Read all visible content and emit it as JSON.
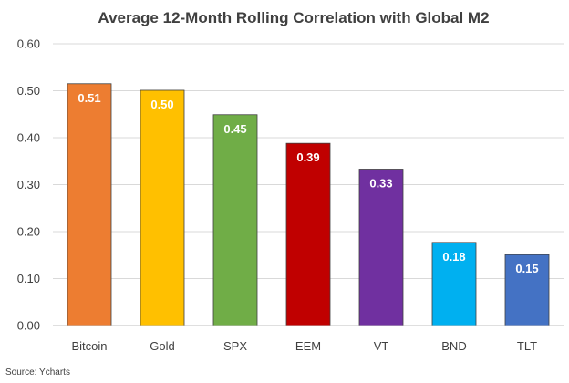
{
  "chart_data": {
    "type": "bar",
    "title": "Average 12-Month Rolling Correlation with Global M2",
    "categories": [
      "Bitcoin",
      "Gold",
      "SPX",
      "EEM",
      "VT",
      "BND",
      "TLT"
    ],
    "values": [
      0.515,
      0.501,
      0.449,
      0.388,
      0.333,
      0.177,
      0.151
    ],
    "data_labels": [
      "0.51",
      "0.50",
      "0.45",
      "0.39",
      "0.33",
      "0.18",
      "0.15"
    ],
    "colors": [
      "#ED7D31",
      "#FFC000",
      "#70AD47",
      "#C00000",
      "#7030A0",
      "#00B0F0",
      "#4472C4"
    ],
    "ylim": [
      0,
      0.6
    ],
    "yticks": [
      0,
      0.1,
      0.2,
      0.3,
      0.4,
      0.5,
      0.6
    ],
    "ytick_labels": [
      "0.00",
      "0.10",
      "0.20",
      "0.30",
      "0.40",
      "0.50",
      "0.60"
    ],
    "grid": true,
    "legend": "none",
    "source": "Source: Ycharts"
  }
}
